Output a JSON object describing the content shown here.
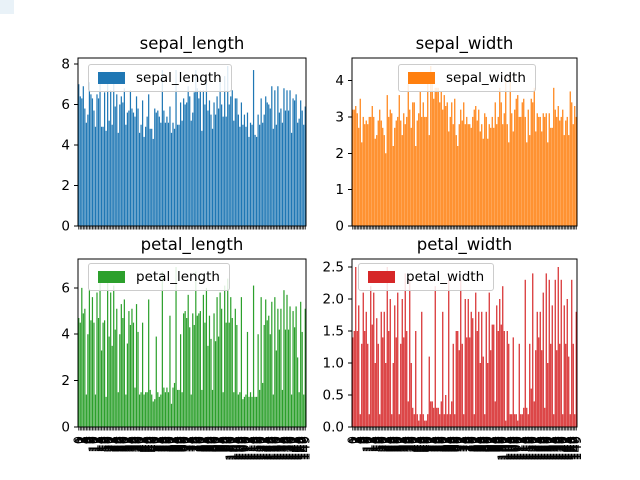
{
  "figure": {
    "background": "#ffffff",
    "grid": "off",
    "layout": "2x2 subplots"
  },
  "chart_data": {
    "type": "bar",
    "x": {
      "tick_labels": "row index",
      "first_label": "0",
      "last_label": "149",
      "count": 150,
      "rotation_deg": 90,
      "readable": false
    },
    "columns": [
      "sepal_length",
      "sepal_width",
      "petal_length",
      "petal_width"
    ],
    "charts": [
      {
        "title": "sepal_length",
        "legend": "sepal_length",
        "color": "#1f77b4",
        "column": 0,
        "ylim": [
          0,
          8.295
        ],
        "yticks": [
          [
            0,
            "0"
          ],
          [
            2,
            "2"
          ],
          [
            4,
            "4"
          ],
          [
            6,
            "6"
          ],
          [
            8,
            "8"
          ]
        ],
        "legend_position": "upper left"
      },
      {
        "title": "sepal_width",
        "legend": "sepal_width",
        "color": "#ff7f0e",
        "column": 1,
        "ylim": [
          0,
          4.62
        ],
        "yticks": [
          [
            0,
            "0"
          ],
          [
            1,
            "1"
          ],
          [
            2,
            "2"
          ],
          [
            3,
            "3"
          ],
          [
            4,
            "4"
          ]
        ],
        "legend_position": "upper center-left"
      },
      {
        "title": "petal_length",
        "legend": "petal_length",
        "color": "#2ca02c",
        "column": 2,
        "ylim": [
          0,
          7.245
        ],
        "yticks": [
          [
            0,
            "0"
          ],
          [
            2,
            "2"
          ],
          [
            4,
            "4"
          ],
          [
            6,
            "6"
          ]
        ],
        "legend_position": "upper left"
      },
      {
        "title": "petal_width",
        "legend": "petal_width",
        "color": "#d62728",
        "column": 3,
        "ylim": [
          0,
          2.625
        ],
        "yticks": [
          [
            0,
            "0.0"
          ],
          [
            0.5,
            "0.5"
          ],
          [
            1,
            "1.0"
          ],
          [
            1.5,
            "1.5"
          ],
          [
            2,
            "2.0"
          ],
          [
            2.5,
            "2.5"
          ]
        ],
        "legend_position": "upper left"
      }
    ],
    "rows": [
      [
        7.0,
        3.2,
        4.7,
        1.4
      ],
      [
        6.4,
        3.2,
        4.5,
        1.5
      ],
      [
        6.3,
        3.3,
        6.0,
        2.5
      ],
      [
        6.9,
        3.1,
        4.9,
        1.5
      ],
      [
        5.8,
        2.7,
        5.1,
        1.9
      ],
      [
        5.1,
        3.5,
        1.4,
        0.2
      ],
      [
        5.5,
        2.3,
        4.0,
        1.3
      ],
      [
        7.1,
        3.0,
        5.9,
        2.1
      ],
      [
        6.5,
        2.8,
        4.6,
        1.5
      ],
      [
        6.3,
        2.9,
        5.6,
        1.8
      ],
      [
        5.7,
        2.8,
        4.5,
        1.3
      ],
      [
        4.9,
        3.0,
        1.4,
        0.2
      ],
      [
        6.5,
        3.0,
        5.8,
        2.2
      ],
      [
        6.3,
        3.3,
        4.7,
        1.6
      ],
      [
        7.6,
        3.0,
        6.6,
        2.1
      ],
      [
        4.9,
        2.4,
        3.3,
        1.0
      ],
      [
        4.9,
        2.5,
        4.5,
        1.7
      ],
      [
        6.6,
        2.9,
        4.6,
        1.3
      ],
      [
        4.7,
        3.2,
        1.3,
        0.2
      ],
      [
        7.3,
        2.9,
        6.3,
        1.8
      ],
      [
        5.2,
        2.7,
        3.9,
        1.4
      ],
      [
        6.7,
        2.5,
        5.8,
        1.8
      ],
      [
        5.0,
        2.0,
        3.5,
        1.0
      ],
      [
        7.2,
        3.6,
        6.1,
        2.5
      ],
      [
        5.9,
        3.0,
        4.2,
        1.5
      ],
      [
        6.5,
        3.2,
        5.1,
        2.0
      ],
      [
        4.6,
        3.1,
        1.5,
        0.2
      ],
      [
        6.0,
        2.2,
        4.0,
        1.0
      ],
      [
        6.4,
        2.7,
        5.3,
        1.9
      ],
      [
        6.1,
        2.9,
        4.7,
        1.4
      ],
      [
        6.8,
        3.0,
        5.5,
        2.1
      ],
      [
        5.0,
        3.6,
        1.4,
        0.2
      ],
      [
        5.6,
        2.9,
        3.6,
        1.3
      ],
      [
        5.7,
        2.5,
        5.0,
        2.0
      ],
      [
        6.7,
        3.1,
        4.4,
        1.4
      ],
      [
        5.8,
        2.8,
        5.1,
        2.4
      ],
      [
        5.6,
        3.0,
        4.5,
        1.5
      ],
      [
        5.4,
        3.9,
        1.7,
        0.4
      ],
      [
        6.4,
        3.2,
        5.3,
        2.3
      ],
      [
        5.8,
        2.7,
        4.1,
        1.0
      ],
      [
        4.6,
        3.4,
        1.4,
        0.3
      ],
      [
        5.0,
        3.4,
        1.5,
        0.2
      ],
      [
        6.2,
        2.2,
        4.5,
        1.5
      ],
      [
        4.4,
        2.9,
        1.4,
        0.2
      ],
      [
        4.9,
        3.1,
        1.5,
        0.1
      ],
      [
        5.4,
        3.7,
        1.5,
        0.2
      ],
      [
        6.5,
        3.0,
        5.5,
        1.8
      ],
      [
        4.8,
        3.4,
        1.6,
        0.2
      ],
      [
        4.8,
        3.0,
        1.4,
        0.1
      ],
      [
        4.3,
        3.0,
        1.1,
        0.1
      ],
      [
        5.8,
        4.0,
        1.2,
        0.2
      ],
      [
        5.6,
        2.5,
        3.9,
        1.1
      ],
      [
        5.7,
        4.4,
        1.5,
        0.4
      ],
      [
        5.4,
        3.9,
        1.3,
        0.4
      ],
      [
        5.1,
        3.5,
        1.4,
        0.3
      ],
      [
        7.7,
        3.8,
        6.7,
        2.2
      ],
      [
        5.7,
        3.8,
        1.7,
        0.3
      ],
      [
        5.1,
        3.8,
        1.5,
        0.3
      ],
      [
        5.4,
        3.4,
        1.7,
        0.2
      ],
      [
        5.1,
        3.7,
        1.5,
        0.4
      ],
      [
        5.9,
        3.2,
        4.8,
        1.8
      ],
      [
        4.6,
        3.6,
        1.0,
        0.2
      ],
      [
        5.1,
        3.3,
        1.7,
        0.5
      ],
      [
        4.8,
        3.4,
        1.9,
        0.2
      ],
      [
        7.7,
        2.6,
        6.9,
        2.3
      ],
      [
        5.0,
        3.0,
        1.6,
        0.2
      ],
      [
        5.0,
        3.4,
        1.6,
        0.4
      ],
      [
        6.1,
        2.8,
        4.0,
        1.3
      ],
      [
        5.2,
        3.5,
        1.5,
        0.2
      ],
      [
        6.3,
        2.5,
        4.9,
        1.5
      ],
      [
        6.0,
        2.2,
        5.0,
        1.5
      ],
      [
        6.1,
        2.8,
        4.7,
        1.2
      ],
      [
        6.9,
        3.2,
        5.7,
        2.3
      ],
      [
        6.4,
        2.9,
        4.3,
        1.3
      ],
      [
        5.2,
        3.4,
        1.4,
        0.2
      ],
      [
        5.6,
        2.8,
        4.9,
        2.0
      ],
      [
        6.6,
        3.0,
        4.4,
        1.4
      ],
      [
        7.7,
        2.8,
        6.7,
        2.0
      ],
      [
        6.8,
        2.8,
        4.8,
        1.4
      ],
      [
        6.3,
        2.7,
        4.9,
        1.8
      ],
      [
        6.7,
        3.0,
        5.0,
        1.7
      ],
      [
        4.7,
        3.2,
        1.6,
        0.2
      ],
      [
        6.7,
        3.3,
        5.7,
        2.1
      ],
      [
        6.0,
        2.9,
        4.5,
        1.5
      ],
      [
        7.2,
        3.2,
        6.0,
        1.8
      ],
      [
        5.7,
        2.6,
        3.5,
        1.0
      ],
      [
        6.2,
        2.8,
        4.8,
        1.8
      ],
      [
        5.5,
        2.4,
        3.8,
        1.1
      ],
      [
        4.8,
        3.1,
        1.6,
        0.2
      ],
      [
        6.1,
        3.0,
        4.9,
        1.8
      ],
      [
        5.5,
        2.4,
        3.7,
        1.0
      ],
      [
        6.4,
        2.8,
        5.6,
        2.1
      ],
      [
        5.8,
        2.7,
        3.9,
        1.2
      ],
      [
        7.2,
        3.0,
        5.8,
        1.6
      ],
      [
        6.0,
        2.7,
        5.1,
        1.6
      ],
      [
        5.4,
        3.4,
        1.5,
        0.4
      ],
      [
        7.4,
        2.8,
        6.1,
        1.9
      ],
      [
        5.4,
        3.0,
        4.5,
        1.5
      ],
      [
        7.9,
        3.8,
        6.4,
        2.0
      ],
      [
        6.0,
        3.4,
        4.5,
        1.6
      ],
      [
        6.4,
        2.8,
        5.6,
        2.2
      ],
      [
        6.7,
        3.1,
        4.7,
        1.5
      ],
      [
        5.2,
        4.1,
        1.5,
        0.1
      ],
      [
        6.3,
        2.8,
        5.1,
        1.5
      ],
      [
        6.3,
        2.3,
        4.4,
        1.3
      ],
      [
        5.5,
        4.2,
        1.4,
        0.2
      ],
      [
        4.9,
        3.1,
        1.5,
        0.2
      ],
      [
        6.1,
        2.6,
        5.6,
        1.4
      ],
      [
        5.0,
        3.2,
        1.2,
        0.2
      ],
      [
        5.5,
        3.5,
        1.3,
        0.2
      ],
      [
        4.9,
        3.6,
        1.4,
        0.1
      ],
      [
        5.6,
        3.0,
        4.1,
        1.3
      ],
      [
        4.4,
        3.0,
        1.3,
        0.2
      ],
      [
        5.1,
        3.4,
        1.5,
        0.2
      ],
      [
        5.0,
        3.5,
        1.3,
        0.3
      ],
      [
        7.7,
        3.0,
        6.1,
        2.3
      ],
      [
        4.5,
        2.3,
        1.3,
        0.3
      ],
      [
        4.4,
        3.2,
        1.3,
        0.2
      ],
      [
        5.5,
        2.5,
        4.0,
        1.3
      ],
      [
        5.0,
        3.5,
        1.6,
        0.6
      ],
      [
        6.3,
        3.4,
        5.6,
        2.4
      ],
      [
        5.1,
        3.8,
        1.9,
        0.4
      ],
      [
        5.5,
        2.6,
        4.4,
        1.2
      ],
      [
        6.4,
        3.1,
        5.5,
        1.8
      ],
      [
        6.1,
        3.0,
        4.6,
        1.4
      ],
      [
        6.0,
        3.0,
        4.8,
        1.8
      ],
      [
        5.8,
        2.6,
        4.0,
        1.2
      ],
      [
        6.9,
        3.1,
        5.4,
        2.1
      ],
      [
        4.8,
        3.0,
        1.4,
        0.3
      ],
      [
        6.7,
        3.1,
        5.6,
        2.4
      ],
      [
        5.0,
        2.3,
        3.3,
        1.0
      ],
      [
        6.9,
        3.1,
        5.1,
        2.3
      ],
      [
        5.6,
        2.7,
        4.2,
        1.3
      ],
      [
        5.8,
        2.7,
        5.1,
        1.9
      ],
      [
        5.1,
        3.8,
        1.6,
        0.2
      ],
      [
        6.8,
        3.2,
        5.9,
        2.3
      ],
      [
        5.7,
        3.0,
        4.2,
        1.2
      ],
      [
        6.7,
        3.3,
        5.7,
        2.5
      ],
      [
        5.7,
        2.9,
        4.2,
        1.3
      ],
      [
        6.7,
        3.0,
        5.2,
        2.3
      ],
      [
        4.6,
        3.2,
        1.4,
        0.2
      ],
      [
        6.3,
        2.5,
        5.0,
        1.9
      ],
      [
        6.2,
        2.9,
        4.3,
        1.3
      ],
      [
        6.5,
        3.0,
        5.2,
        2.0
      ],
      [
        5.1,
        2.5,
        3.0,
        1.1
      ],
      [
        5.3,
        3.7,
        1.5,
        0.2
      ],
      [
        6.2,
        3.4,
        5.4,
        2.3
      ],
      [
        5.7,
        2.8,
        4.1,
        1.3
      ],
      [
        5.0,
        3.3,
        1.4,
        0.2
      ],
      [
        5.9,
        3.0,
        5.1,
        1.8
      ]
    ]
  }
}
